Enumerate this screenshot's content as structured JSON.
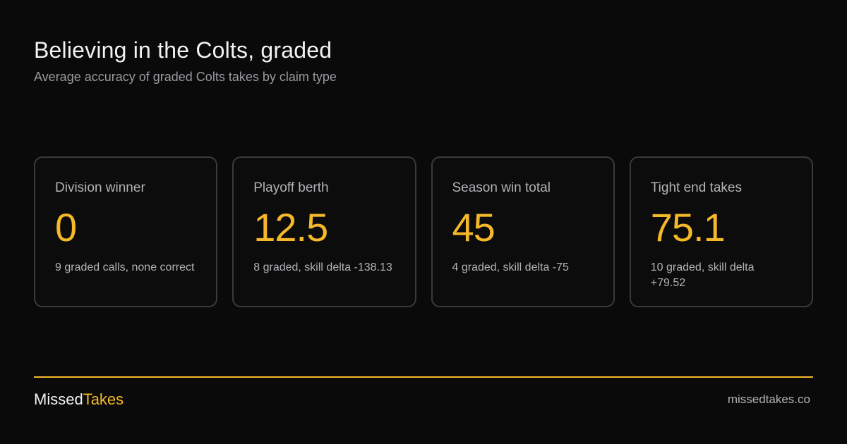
{
  "header": {
    "title": "Believing in the Colts, graded",
    "subtitle": "Average accuracy of graded Colts takes by claim type"
  },
  "chart_data": {
    "type": "table",
    "title": "Believing in the Colts, graded",
    "subtitle": "Average accuracy of graded Colts takes by claim type",
    "categories": [
      "Division winner",
      "Playoff berth",
      "Season win total",
      "Tight end takes"
    ],
    "values": [
      0,
      12.5,
      45,
      75.1
    ],
    "cards": [
      {
        "label": "Division winner",
        "value": "0",
        "note": "9 graded calls, none correct"
      },
      {
        "label": "Playoff berth",
        "value": "12.5",
        "note": "8 graded, skill delta -138.13"
      },
      {
        "label": "Season win total",
        "value": "45",
        "note": "4 graded, skill delta -75"
      },
      {
        "label": "Tight end takes",
        "value": "75.1",
        "note": "10 graded, skill delta +79.52"
      }
    ]
  },
  "footer": {
    "brand_part1": "Missed",
    "brand_part2": "Takes",
    "site": "missedtakes.co"
  },
  "colors": {
    "background": "#0a0a0a",
    "accent": "#f5b829",
    "card_border": "#3a3a3e",
    "muted_text": "#b4b4b8"
  }
}
